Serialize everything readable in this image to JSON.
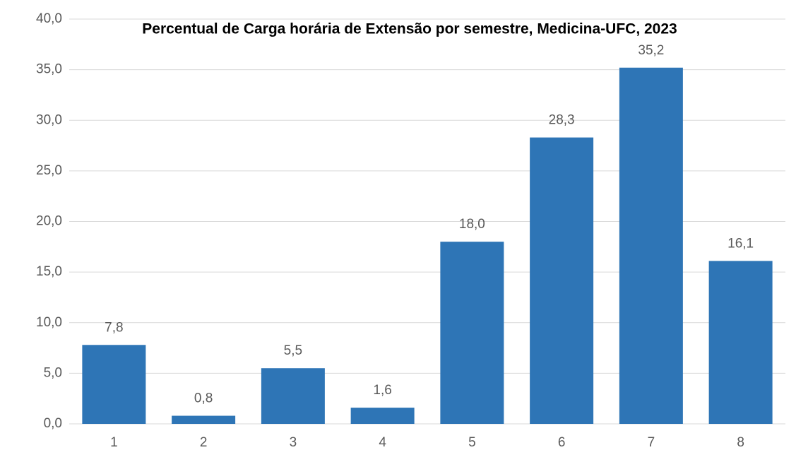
{
  "chart_data": {
    "type": "bar",
    "title": "Percentual de Carga horária de Extensão por semestre, Medicina-UFC, 2023",
    "categories": [
      "1",
      "2",
      "3",
      "4",
      "5",
      "6",
      "7",
      "8"
    ],
    "values": [
      7.8,
      0.8,
      5.5,
      1.6,
      18.0,
      28.3,
      35.2,
      16.1
    ],
    "value_labels": [
      "7,8",
      "0,8",
      "5,5",
      "1,6",
      "18,0",
      "28,3",
      "35,2",
      "16,1"
    ],
    "color": "#2e75b6",
    "ylim": [
      0,
      40
    ],
    "yticks": [
      {
        "value": 0,
        "label": "0,0"
      },
      {
        "value": 5,
        "label": "5,0"
      },
      {
        "value": 10,
        "label": "10,0"
      },
      {
        "value": 15,
        "label": "15,0"
      },
      {
        "value": 20,
        "label": "20,0"
      },
      {
        "value": 25,
        "label": "25,0"
      },
      {
        "value": 30,
        "label": "30,0"
      },
      {
        "value": 35,
        "label": "35,0"
      },
      {
        "value": 40,
        "label": "40,0"
      }
    ],
    "grid": true
  }
}
